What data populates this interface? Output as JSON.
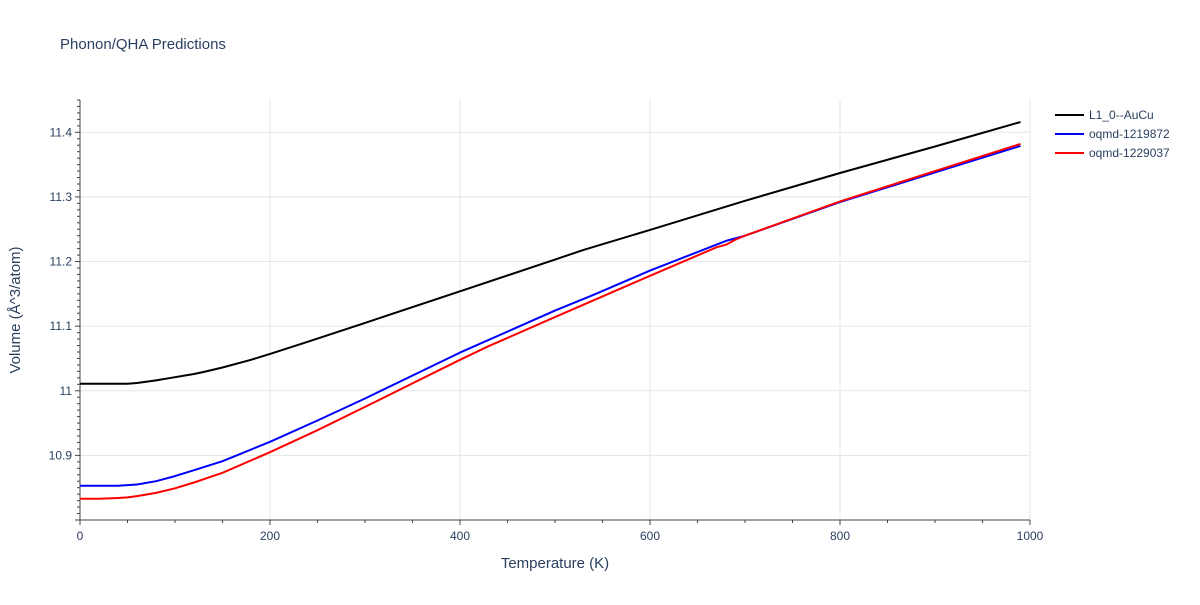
{
  "chart_data": {
    "type": "line",
    "title": "Phonon/QHA Predictions",
    "xlabel": "Temperature (K)",
    "ylabel": "Volume (Å^3/atom)",
    "xlim": [
      0,
      1000
    ],
    "ylim": [
      10.8,
      11.45
    ],
    "xticks": [
      0,
      200,
      400,
      600,
      800,
      1000
    ],
    "xtick_labels": [
      "0",
      "200",
      "400",
      "600",
      "800",
      "1000"
    ],
    "yticks": [
      10.9,
      11.0,
      11.1,
      11.2,
      11.3,
      11.4
    ],
    "ytick_labels": [
      "10.9",
      "11",
      "11.1",
      "11.2",
      "11.3",
      "11.4"
    ],
    "grid": true,
    "legend_position": "top-right",
    "series": [
      {
        "name": "L1_0--AuCu",
        "color": "#000000",
        "x": [
          0,
          20,
          40,
          50,
          60,
          80,
          100,
          120,
          130,
          150,
          180,
          200,
          240,
          300,
          400,
          500,
          530,
          600,
          700,
          800,
          900,
          990
        ],
        "y": [
          11.011,
          11.011,
          11.011,
          11.011,
          11.012,
          11.016,
          11.021,
          11.026,
          11.029,
          11.036,
          11.048,
          11.057,
          11.076,
          11.105,
          11.154,
          11.203,
          11.218,
          11.249,
          11.294,
          11.337,
          11.378,
          11.416
        ]
      },
      {
        "name": "oqmd-1219872",
        "color": "#0000ff",
        "x": [
          0,
          20,
          40,
          50,
          60,
          80,
          100,
          120,
          150,
          200,
          250,
          300,
          400,
          500,
          540,
          600,
          680,
          700,
          800,
          900,
          990
        ],
        "y": [
          10.853,
          10.853,
          10.853,
          10.854,
          10.855,
          10.86,
          10.868,
          10.877,
          10.891,
          10.921,
          10.954,
          10.988,
          11.059,
          11.124,
          11.148,
          11.186,
          11.232,
          11.24,
          11.292,
          11.338,
          11.379
        ]
      },
      {
        "name": "oqmd-1229037",
        "color": "#ff0000",
        "x": [
          0,
          20,
          40,
          50,
          60,
          80,
          100,
          120,
          150,
          200,
          250,
          300,
          400,
          430,
          500,
          600,
          670,
          680,
          690,
          700,
          800,
          900,
          990
        ],
        "y": [
          10.833,
          10.833,
          10.834,
          10.835,
          10.837,
          10.842,
          10.849,
          10.858,
          10.873,
          10.905,
          10.939,
          10.975,
          11.048,
          11.069,
          11.114,
          11.178,
          11.222,
          11.226,
          11.234,
          11.24,
          11.293,
          11.34,
          11.382
        ]
      }
    ]
  }
}
